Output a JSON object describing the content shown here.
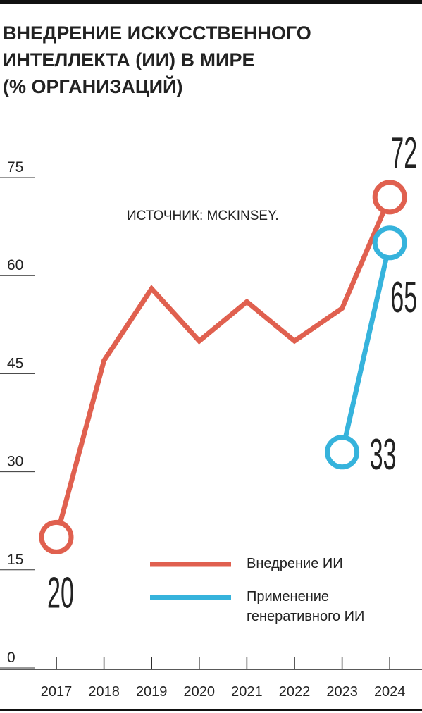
{
  "chart_data": {
    "type": "line",
    "title": [
      "ВНЕДРЕНИЕ ИСКУССТВЕННОГО",
      "ИНТЕЛЛЕКТА (ИИ) В МИРЕ",
      "(% ОРГАНИЗАЦИЙ)"
    ],
    "source": "ИСТОЧНИК: MCKINSEY.",
    "categories": [
      "2017",
      "2018",
      "2019",
      "2020",
      "2021",
      "2022",
      "2023",
      "2024"
    ],
    "series": [
      {
        "name": "Внедрение ИИ",
        "color": "#e0604f",
        "values": [
          20,
          47,
          58,
          50,
          56,
          50,
          55,
          72
        ]
      },
      {
        "name": "Применение генеративного ИИ",
        "color": "#36b3dc",
        "values": [
          null,
          null,
          null,
          null,
          null,
          null,
          33,
          65
        ]
      }
    ],
    "ylim": [
      0,
      75
    ],
    "yticks": [
      0,
      15,
      30,
      45,
      60,
      75
    ],
    "grid": false
  }
}
